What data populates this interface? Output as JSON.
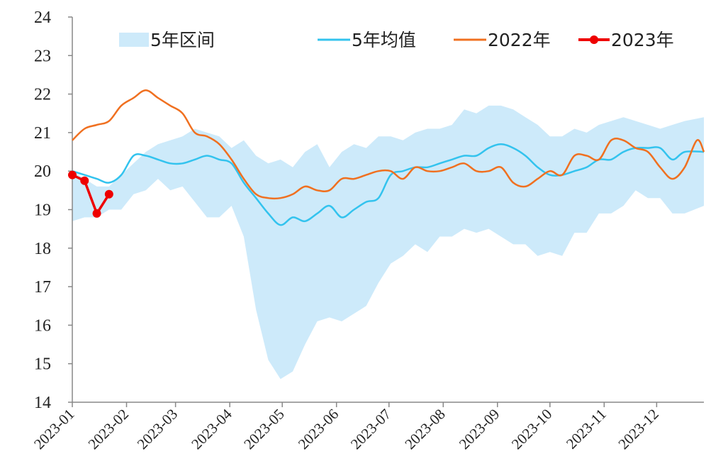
{
  "chart_data": {
    "type": "line",
    "x_range": [
      "2023-01-01",
      "2023-12-28"
    ],
    "ylim": [
      14,
      24
    ],
    "y_ticks": [
      "14",
      "15",
      "16",
      "17",
      "18",
      "19",
      "20",
      "21",
      "22",
      "23",
      "24"
    ],
    "x_ticks": [
      "2023-01",
      "2023-02",
      "2023-03",
      "2023-04",
      "2023-05",
      "2023-06",
      "2023-07",
      "2023-08",
      "2023-09",
      "2023-10",
      "2023-11",
      "2023-12"
    ],
    "legend_position": "top",
    "grid": false,
    "band": {
      "name": "5年区间",
      "color": "#cdeafa",
      "upper": [
        [
          "2023-01-01",
          20.0
        ],
        [
          "2023-01-08",
          19.8
        ],
        [
          "2023-01-15",
          19.6
        ],
        [
          "2023-01-22",
          19.6
        ],
        [
          "2023-01-29",
          19.9
        ],
        [
          "2023-02-05",
          20.2
        ],
        [
          "2023-02-12",
          20.5
        ],
        [
          "2023-02-19",
          20.7
        ],
        [
          "2023-02-26",
          20.8
        ],
        [
          "2023-03-05",
          20.9
        ],
        [
          "2023-03-12",
          21.1
        ],
        [
          "2023-03-19",
          21.0
        ],
        [
          "2023-03-26",
          20.9
        ],
        [
          "2023-04-02",
          20.6
        ],
        [
          "2023-04-09",
          20.8
        ],
        [
          "2023-04-16",
          20.4
        ],
        [
          "2023-04-23",
          20.2
        ],
        [
          "2023-04-30",
          20.3
        ],
        [
          "2023-05-07",
          20.1
        ],
        [
          "2023-05-14",
          20.5
        ],
        [
          "2023-05-21",
          20.7
        ],
        [
          "2023-05-28",
          20.1
        ],
        [
          "2023-06-04",
          20.5
        ],
        [
          "2023-06-11",
          20.7
        ],
        [
          "2023-06-18",
          20.6
        ],
        [
          "2023-06-25",
          20.9
        ],
        [
          "2023-07-02",
          20.9
        ],
        [
          "2023-07-09",
          20.8
        ],
        [
          "2023-07-16",
          21.0
        ],
        [
          "2023-07-23",
          21.1
        ],
        [
          "2023-07-30",
          21.1
        ],
        [
          "2023-08-06",
          21.2
        ],
        [
          "2023-08-13",
          21.6
        ],
        [
          "2023-08-20",
          21.5
        ],
        [
          "2023-08-27",
          21.7
        ],
        [
          "2023-09-03",
          21.7
        ],
        [
          "2023-09-10",
          21.6
        ],
        [
          "2023-09-17",
          21.4
        ],
        [
          "2023-09-24",
          21.2
        ],
        [
          "2023-10-01",
          20.9
        ],
        [
          "2023-10-08",
          20.9
        ],
        [
          "2023-10-15",
          21.1
        ],
        [
          "2023-10-22",
          21.0
        ],
        [
          "2023-10-29",
          21.2
        ],
        [
          "2023-11-05",
          21.3
        ],
        [
          "2023-11-12",
          21.4
        ],
        [
          "2023-11-19",
          21.3
        ],
        [
          "2023-11-26",
          21.2
        ],
        [
          "2023-12-03",
          21.1
        ],
        [
          "2023-12-10",
          21.2
        ],
        [
          "2023-12-17",
          21.3
        ],
        [
          "2023-12-28",
          21.4
        ]
      ],
      "lower": [
        [
          "2023-01-01",
          18.7
        ],
        [
          "2023-01-08",
          18.8
        ],
        [
          "2023-01-15",
          18.8
        ],
        [
          "2023-01-22",
          19.0
        ],
        [
          "2023-01-29",
          19.0
        ],
        [
          "2023-02-05",
          19.4
        ],
        [
          "2023-02-12",
          19.5
        ],
        [
          "2023-02-19",
          19.8
        ],
        [
          "2023-02-26",
          19.5
        ],
        [
          "2023-03-05",
          19.6
        ],
        [
          "2023-03-12",
          19.2
        ],
        [
          "2023-03-19",
          18.8
        ],
        [
          "2023-03-26",
          18.8
        ],
        [
          "2023-04-02",
          19.1
        ],
        [
          "2023-04-09",
          18.3
        ],
        [
          "2023-04-16",
          16.4
        ],
        [
          "2023-04-23",
          15.1
        ],
        [
          "2023-04-30",
          14.6
        ],
        [
          "2023-05-07",
          14.8
        ],
        [
          "2023-05-14",
          15.5
        ],
        [
          "2023-05-21",
          16.1
        ],
        [
          "2023-05-28",
          16.2
        ],
        [
          "2023-06-04",
          16.1
        ],
        [
          "2023-06-11",
          16.3
        ],
        [
          "2023-06-18",
          16.5
        ],
        [
          "2023-06-25",
          17.1
        ],
        [
          "2023-07-02",
          17.6
        ],
        [
          "2023-07-09",
          17.8
        ],
        [
          "2023-07-16",
          18.1
        ],
        [
          "2023-07-23",
          17.9
        ],
        [
          "2023-07-30",
          18.3
        ],
        [
          "2023-08-06",
          18.3
        ],
        [
          "2023-08-13",
          18.5
        ],
        [
          "2023-08-20",
          18.4
        ],
        [
          "2023-08-27",
          18.5
        ],
        [
          "2023-09-03",
          18.3
        ],
        [
          "2023-09-10",
          18.1
        ],
        [
          "2023-09-17",
          18.1
        ],
        [
          "2023-09-24",
          17.8
        ],
        [
          "2023-10-01",
          17.9
        ],
        [
          "2023-10-08",
          17.8
        ],
        [
          "2023-10-15",
          18.4
        ],
        [
          "2023-10-22",
          18.4
        ],
        [
          "2023-10-29",
          18.9
        ],
        [
          "2023-11-05",
          18.9
        ],
        [
          "2023-11-12",
          19.1
        ],
        [
          "2023-11-19",
          19.5
        ],
        [
          "2023-11-26",
          19.3
        ],
        [
          "2023-12-03",
          19.3
        ],
        [
          "2023-12-10",
          18.9
        ],
        [
          "2023-12-17",
          18.9
        ],
        [
          "2023-12-28",
          19.1
        ]
      ]
    },
    "series": [
      {
        "name": "5年均值",
        "color": "#33c3ee",
        "markers": false,
        "points": [
          [
            "2023-01-01",
            20.0
          ],
          [
            "2023-01-08",
            19.9
          ],
          [
            "2023-01-15",
            19.8
          ],
          [
            "2023-01-22",
            19.7
          ],
          [
            "2023-01-29",
            19.9
          ],
          [
            "2023-02-05",
            20.4
          ],
          [
            "2023-02-12",
            20.4
          ],
          [
            "2023-02-19",
            20.3
          ],
          [
            "2023-02-26",
            20.2
          ],
          [
            "2023-03-05",
            20.2
          ],
          [
            "2023-03-12",
            20.3
          ],
          [
            "2023-03-19",
            20.4
          ],
          [
            "2023-03-26",
            20.3
          ],
          [
            "2023-04-02",
            20.2
          ],
          [
            "2023-04-09",
            19.7
          ],
          [
            "2023-04-16",
            19.3
          ],
          [
            "2023-04-23",
            18.9
          ],
          [
            "2023-04-30",
            18.6
          ],
          [
            "2023-05-07",
            18.8
          ],
          [
            "2023-05-14",
            18.7
          ],
          [
            "2023-05-21",
            18.9
          ],
          [
            "2023-05-28",
            19.1
          ],
          [
            "2023-06-04",
            18.8
          ],
          [
            "2023-06-11",
            19.0
          ],
          [
            "2023-06-18",
            19.2
          ],
          [
            "2023-06-25",
            19.3
          ],
          [
            "2023-07-02",
            19.9
          ],
          [
            "2023-07-09",
            20.0
          ],
          [
            "2023-07-16",
            20.1
          ],
          [
            "2023-07-23",
            20.1
          ],
          [
            "2023-07-30",
            20.2
          ],
          [
            "2023-08-06",
            20.3
          ],
          [
            "2023-08-13",
            20.4
          ],
          [
            "2023-08-20",
            20.4
          ],
          [
            "2023-08-27",
            20.6
          ],
          [
            "2023-09-03",
            20.7
          ],
          [
            "2023-09-10",
            20.6
          ],
          [
            "2023-09-17",
            20.4
          ],
          [
            "2023-09-24",
            20.1
          ],
          [
            "2023-10-01",
            19.9
          ],
          [
            "2023-10-08",
            19.9
          ],
          [
            "2023-10-15",
            20.0
          ],
          [
            "2023-10-22",
            20.1
          ],
          [
            "2023-10-29",
            20.3
          ],
          [
            "2023-11-05",
            20.3
          ],
          [
            "2023-11-12",
            20.5
          ],
          [
            "2023-11-19",
            20.6
          ],
          [
            "2023-11-26",
            20.6
          ],
          [
            "2023-12-03",
            20.6
          ],
          [
            "2023-12-10",
            20.3
          ],
          [
            "2023-12-17",
            20.5
          ],
          [
            "2023-12-28",
            20.5
          ]
        ]
      },
      {
        "name": "2022年",
        "color": "#f07020",
        "markers": false,
        "points": [
          [
            "2023-01-01",
            20.8
          ],
          [
            "2023-01-08",
            21.1
          ],
          [
            "2023-01-15",
            21.2
          ],
          [
            "2023-01-22",
            21.3
          ],
          [
            "2023-01-29",
            21.7
          ],
          [
            "2023-02-05",
            21.9
          ],
          [
            "2023-02-12",
            22.1
          ],
          [
            "2023-02-19",
            21.9
          ],
          [
            "2023-02-26",
            21.7
          ],
          [
            "2023-03-05",
            21.5
          ],
          [
            "2023-03-12",
            21.0
          ],
          [
            "2023-03-19",
            20.9
          ],
          [
            "2023-03-26",
            20.7
          ],
          [
            "2023-04-02",
            20.3
          ],
          [
            "2023-04-09",
            19.8
          ],
          [
            "2023-04-16",
            19.4
          ],
          [
            "2023-04-23",
            19.3
          ],
          [
            "2023-04-30",
            19.3
          ],
          [
            "2023-05-07",
            19.4
          ],
          [
            "2023-05-14",
            19.6
          ],
          [
            "2023-05-21",
            19.5
          ],
          [
            "2023-05-28",
            19.5
          ],
          [
            "2023-06-04",
            19.8
          ],
          [
            "2023-06-11",
            19.8
          ],
          [
            "2023-06-18",
            19.9
          ],
          [
            "2023-06-25",
            20.0
          ],
          [
            "2023-07-02",
            20.0
          ],
          [
            "2023-07-09",
            19.8
          ],
          [
            "2023-07-16",
            20.1
          ],
          [
            "2023-07-23",
            20.0
          ],
          [
            "2023-07-30",
            20.0
          ],
          [
            "2023-08-06",
            20.1
          ],
          [
            "2023-08-13",
            20.2
          ],
          [
            "2023-08-20",
            20.0
          ],
          [
            "2023-08-27",
            20.0
          ],
          [
            "2023-09-03",
            20.1
          ],
          [
            "2023-09-10",
            19.7
          ],
          [
            "2023-09-17",
            19.6
          ],
          [
            "2023-09-24",
            19.8
          ],
          [
            "2023-10-01",
            20.0
          ],
          [
            "2023-10-08",
            19.9
          ],
          [
            "2023-10-15",
            20.4
          ],
          [
            "2023-10-22",
            20.4
          ],
          [
            "2023-10-29",
            20.3
          ],
          [
            "2023-11-05",
            20.8
          ],
          [
            "2023-11-12",
            20.8
          ],
          [
            "2023-11-19",
            20.6
          ],
          [
            "2023-11-26",
            20.5
          ],
          [
            "2023-12-03",
            20.1
          ],
          [
            "2023-12-10",
            19.8
          ],
          [
            "2023-12-17",
            20.1
          ],
          [
            "2023-12-24",
            20.8
          ],
          [
            "2023-12-28",
            20.5
          ]
        ]
      },
      {
        "name": "2023年",
        "color": "#ee0000",
        "markers": true,
        "points": [
          [
            "2023-01-01",
            19.9
          ],
          [
            "2023-01-08",
            19.75
          ],
          [
            "2023-01-15",
            18.9
          ],
          [
            "2023-01-22",
            19.4
          ]
        ]
      }
    ]
  }
}
